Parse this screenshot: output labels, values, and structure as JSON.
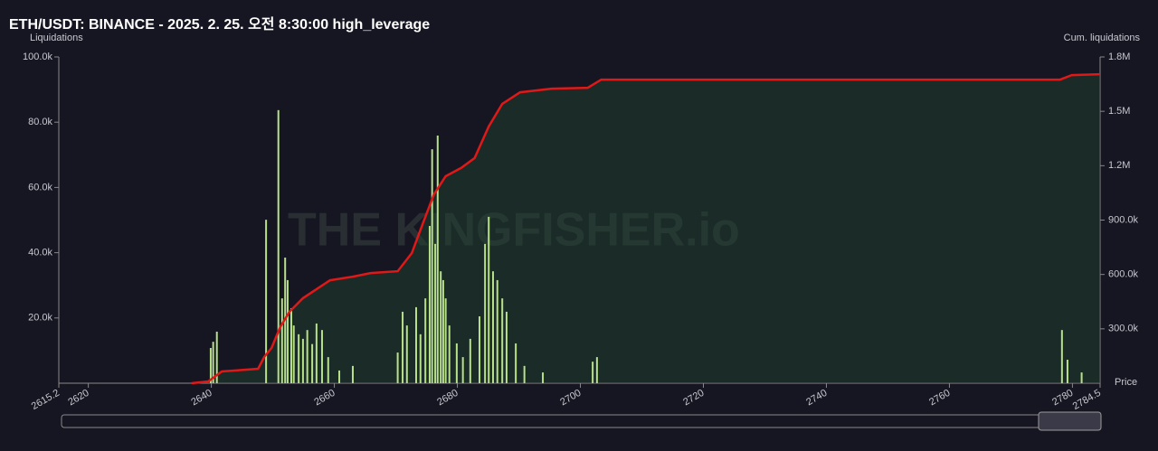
{
  "chart_data": {
    "type": "bar",
    "title": "ETH/USDT: BINANCE - 2025. 2. 25. 오전 8:30:00 high_leverage",
    "y_label": "Liquidations",
    "y2_label": "Cum. liquidations",
    "x_label": "Price",
    "watermark": "THE KINGFISHER.io",
    "xlim": [
      2615.2,
      2784.5
    ],
    "xticks": [
      2615.2,
      2620,
      2640,
      2660,
      2680,
      2700,
      2720,
      2740,
      2760,
      2780,
      2784.5
    ],
    "ylim": [
      0,
      100000
    ],
    "yticks": [
      {
        "value": 20000,
        "label": "20.0k"
      },
      {
        "value": 40000,
        "label": "40.0k"
      },
      {
        "value": 60000,
        "label": "60.0k"
      },
      {
        "value": 80000,
        "label": "80.0k"
      },
      {
        "value": 100000,
        "label": "100.0k"
      }
    ],
    "y2lim": [
      0,
      1800000
    ],
    "y2ticks": [
      {
        "value": 300000,
        "label": "300.0k"
      },
      {
        "value": 600000,
        "label": "600.0k"
      },
      {
        "value": 900000,
        "label": "900.0k"
      },
      {
        "value": 1200000,
        "label": "1.2M"
      },
      {
        "value": 1500000,
        "label": "1.5M"
      },
      {
        "value": 1800000,
        "label": "1.8M"
      }
    ],
    "series": [
      {
        "name": "Liquidations",
        "color": "#b8e08a",
        "x": [
          2639.9,
          2640.3,
          2640.9,
          2648.9,
          2650.9,
          2651.5,
          2652.0,
          2652.4,
          2653.0,
          2653.4,
          2654.2,
          2654.9,
          2655.6,
          2656.4,
          2657.1,
          2658.0,
          2659.0,
          2660.8,
          2663.0,
          2670.3,
          2671.1,
          2671.8,
          2673.3,
          2674.0,
          2674.8,
          2675.5,
          2675.9,
          2676.4,
          2676.8,
          2677.3,
          2677.7,
          2678.1,
          2678.7,
          2679.9,
          2680.9,
          2682.1,
          2683.6,
          2684.5,
          2685.1,
          2685.8,
          2686.5,
          2687.3,
          2688.0,
          2689.5,
          2690.9,
          2693.9,
          2702.0,
          2702.7,
          2778.3,
          2779.2,
          2781.5
        ],
        "values": [
          10800,
          12700,
          15800,
          50100,
          83700,
          26000,
          38500,
          31600,
          23000,
          17700,
          15000,
          13600,
          16300,
          12000,
          18300,
          16300,
          8000,
          3900,
          5300,
          9400,
          21900,
          17700,
          23300,
          15000,
          26000,
          48200,
          71700,
          42700,
          75900,
          34300,
          31600,
          26000,
          17700,
          12200,
          8000,
          13600,
          20500,
          42700,
          51000,
          34300,
          31600,
          26000,
          21900,
          12200,
          5300,
          3300,
          6600,
          8000,
          16300,
          7200,
          3300
        ]
      },
      {
        "name": "Cum. liquidations",
        "color": "#e01818",
        "axis": "y2",
        "x": [
          2636.8,
          2639.5,
          2641.7,
          2647.6,
          2648.6,
          2649.8,
          2651.2,
          2652.7,
          2654.9,
          2657.1,
          2659.3,
          2663.0,
          2665.9,
          2670.3,
          2672.6,
          2674.5,
          2676.2,
          2678.1,
          2680.6,
          2682.8,
          2685.1,
          2687.3,
          2690.2,
          2695.3,
          2701.2,
          2703.4,
          2778.0,
          2779.9,
          2784.5
        ],
        "values": [
          0,
          10000,
          65000,
          80000,
          145000,
          195000,
          309000,
          394000,
          469000,
          519000,
          568000,
          588000,
          608000,
          618000,
          718000,
          892000,
          1042000,
          1142000,
          1187000,
          1242000,
          1416000,
          1541000,
          1605000,
          1625000,
          1630000,
          1675000,
          1675000,
          1700000,
          1705000
        ]
      }
    ]
  }
}
